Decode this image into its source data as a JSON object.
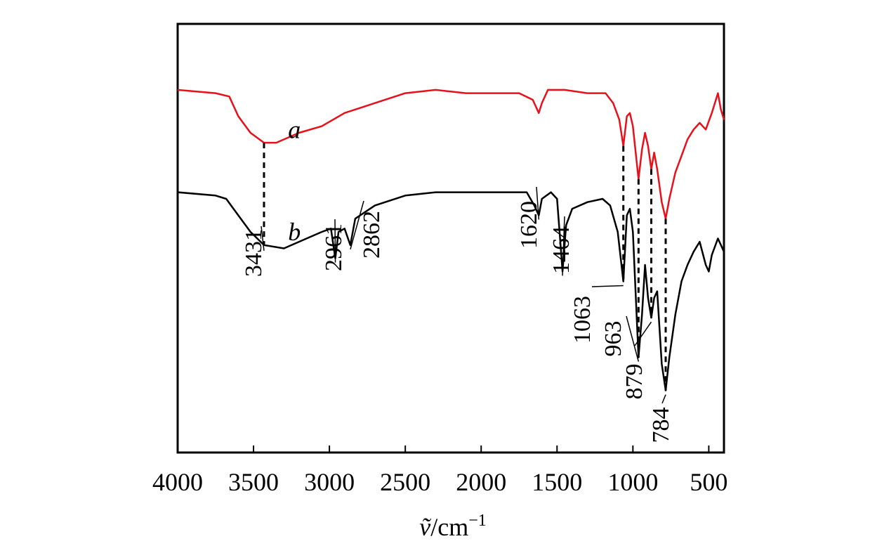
{
  "chart_data": {
    "type": "line",
    "title": "",
    "xlabel_var": "ṽ",
    "xlabel_unit": "/cm",
    "xlabel_exp": "−1",
    "ylabel": "",
    "xlim": [
      4000,
      400
    ],
    "x_ticks": [
      4000,
      3500,
      3000,
      2500,
      2000,
      1500,
      1000,
      500
    ],
    "x_tick_labels": [
      "4000",
      "3500",
      "3000",
      "2500",
      "2000",
      "1500",
      "1000",
      "500"
    ],
    "series": [
      {
        "name": "a",
        "color": "#e8101a",
        "points": [
          [
            4000,
            0.93
          ],
          [
            3750,
            0.92
          ],
          [
            3660,
            0.91
          ],
          [
            3600,
            0.85
          ],
          [
            3520,
            0.8
          ],
          [
            3431,
            0.77
          ],
          [
            3350,
            0.77
          ],
          [
            3200,
            0.8
          ],
          [
            3050,
            0.82
          ],
          [
            2900,
            0.86
          ],
          [
            2700,
            0.89
          ],
          [
            2500,
            0.92
          ],
          [
            2300,
            0.93
          ],
          [
            2100,
            0.92
          ],
          [
            1900,
            0.92
          ],
          [
            1750,
            0.92
          ],
          [
            1660,
            0.9
          ],
          [
            1620,
            0.86
          ],
          [
            1600,
            0.89
          ],
          [
            1560,
            0.93
          ],
          [
            1450,
            0.93
          ],
          [
            1300,
            0.92
          ],
          [
            1180,
            0.92
          ],
          [
            1130,
            0.89
          ],
          [
            1090,
            0.84
          ],
          [
            1063,
            0.76
          ],
          [
            1040,
            0.85
          ],
          [
            1020,
            0.86
          ],
          [
            1000,
            0.82
          ],
          [
            963,
            0.66
          ],
          [
            940,
            0.75
          ],
          [
            920,
            0.8
          ],
          [
            900,
            0.76
          ],
          [
            879,
            0.69
          ],
          [
            860,
            0.74
          ],
          [
            840,
            0.69
          ],
          [
            810,
            0.59
          ],
          [
            784,
            0.54
          ],
          [
            760,
            0.6
          ],
          [
            720,
            0.68
          ],
          [
            680,
            0.73
          ],
          [
            640,
            0.78
          ],
          [
            600,
            0.81
          ],
          [
            560,
            0.83
          ],
          [
            520,
            0.81
          ],
          [
            480,
            0.86
          ],
          [
            440,
            0.92
          ],
          [
            420,
            0.87
          ],
          [
            400,
            0.84
          ]
        ]
      },
      {
        "name": "b",
        "color": "#000000",
        "points": [
          [
            4000,
            0.62
          ],
          [
            3750,
            0.61
          ],
          [
            3680,
            0.6
          ],
          [
            3600,
            0.55
          ],
          [
            3520,
            0.5
          ],
          [
            3431,
            0.46
          ],
          [
            3300,
            0.45
          ],
          [
            3150,
            0.48
          ],
          [
            3050,
            0.5
          ],
          [
            2990,
            0.51
          ],
          [
            2961,
            0.42
          ],
          [
            2940,
            0.5
          ],
          [
            2900,
            0.51
          ],
          [
            2862,
            0.46
          ],
          [
            2830,
            0.54
          ],
          [
            2700,
            0.58
          ],
          [
            2500,
            0.61
          ],
          [
            2300,
            0.62
          ],
          [
            2100,
            0.62
          ],
          [
            1900,
            0.62
          ],
          [
            1700,
            0.62
          ],
          [
            1650,
            0.58
          ],
          [
            1620,
            0.55
          ],
          [
            1600,
            0.6
          ],
          [
            1540,
            0.62
          ],
          [
            1500,
            0.6
          ],
          [
            1480,
            0.48
          ],
          [
            1464,
            0.38
          ],
          [
            1440,
            0.52
          ],
          [
            1400,
            0.57
          ],
          [
            1300,
            0.59
          ],
          [
            1200,
            0.6
          ],
          [
            1150,
            0.58
          ],
          [
            1100,
            0.5
          ],
          [
            1063,
            0.35
          ],
          [
            1040,
            0.55
          ],
          [
            1020,
            0.57
          ],
          [
            1000,
            0.5
          ],
          [
            963,
            0.12
          ],
          [
            940,
            0.25
          ],
          [
            920,
            0.4
          ],
          [
            900,
            0.3
          ],
          [
            879,
            0.24
          ],
          [
            860,
            0.3
          ],
          [
            840,
            0.32
          ],
          [
            810,
            0.1
          ],
          [
            784,
            0.02
          ],
          [
            760,
            0.12
          ],
          [
            720,
            0.25
          ],
          [
            680,
            0.35
          ],
          [
            640,
            0.4
          ],
          [
            600,
            0.44
          ],
          [
            560,
            0.47
          ],
          [
            520,
            0.4
          ],
          [
            500,
            0.38
          ],
          [
            480,
            0.43
          ],
          [
            440,
            0.48
          ],
          [
            420,
            0.46
          ],
          [
            400,
            0.44
          ]
        ]
      }
    ],
    "series_labels": [
      {
        "text": "a",
        "x": 3365,
        "value": 0.81
      },
      {
        "text": "b",
        "x": 3365,
        "value": 0.5
      }
    ],
    "dashed_markers": [
      {
        "x": 3431,
        "from_series": "a",
        "to_series": "b"
      },
      {
        "x": 1063,
        "from_series": "a",
        "to_series": "b"
      },
      {
        "x": 963,
        "from_series": "a",
        "to_series": "b"
      },
      {
        "x": 879,
        "from_series": "a",
        "to_series": "b"
      },
      {
        "x": 784,
        "from_series": "a",
        "to_series": "b"
      }
    ],
    "peak_annotations": [
      {
        "label": "3431",
        "x": 3431
      },
      {
        "label": "2961",
        "x": 2961
      },
      {
        "label": "2862",
        "x": 2862
      },
      {
        "label": "1620",
        "x": 1620
      },
      {
        "label": "1464",
        "x": 1464
      },
      {
        "label": "1063",
        "x": 1063
      },
      {
        "label": "963",
        "x": 963
      },
      {
        "label": "879",
        "x": 879
      },
      {
        "label": "784",
        "x": 784
      }
    ]
  }
}
